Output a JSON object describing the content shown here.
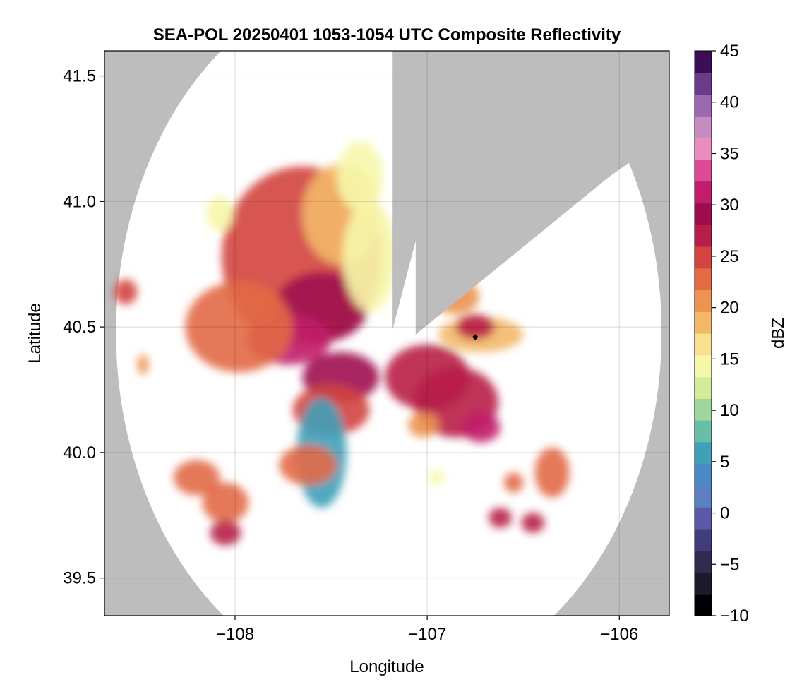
{
  "chart_data": {
    "type": "heatmap",
    "title": "SEA-POL 20250401 1053-1054 UTC Composite Reflectivity",
    "xlabel": "Longitude",
    "ylabel": "Latitude",
    "xlim": [
      -108.68,
      -105.74
    ],
    "ylim": [
      39.35,
      41.6
    ],
    "xticks": [
      -108,
      -107,
      -106
    ],
    "xtick_labels": [
      "−108",
      "−107",
      "−106"
    ],
    "yticks": [
      39.5,
      40.0,
      40.5,
      41.0,
      41.5
    ],
    "ytick_labels": [
      "39.5",
      "40.0",
      "40.5",
      "41.0",
      "41.5"
    ],
    "grid": true,
    "background_color": "#bdbdbd",
    "radar": {
      "center": [
        -107.2,
        40.48
      ],
      "range_deg": 1.42,
      "blocked_sectors": [
        {
          "lon": [
            -107.18,
            -106.83
          ],
          "lat": [
            40.49,
            41.52
          ]
        },
        {
          "lon": [
            -107.06,
            -106.05
          ],
          "lat": [
            40.47,
            41.1
          ]
        }
      ]
    },
    "marker": {
      "lon": -106.75,
      "lat": 40.46,
      "color": "#000000"
    },
    "colorbar": {
      "label": "dBZ",
      "min": -10,
      "max": 45,
      "ticks": [
        -10,
        -5,
        0,
        5,
        10,
        15,
        20,
        25,
        30,
        35,
        40,
        45
      ],
      "tick_labels": [
        "−10",
        "−5",
        "0",
        "5",
        "10",
        "15",
        "20",
        "25",
        "30",
        "35",
        "40",
        "45"
      ],
      "colors": [
        "#000004",
        "#1b1b2a",
        "#2f2c4f",
        "#433c7a",
        "#5a5aa8",
        "#5b7fbf",
        "#4a8ac4",
        "#3fa0b8",
        "#66bfa6",
        "#9fd69d",
        "#d4ec9a",
        "#f6f7a8",
        "#f9e08f",
        "#f3b86a",
        "#ec9351",
        "#e26a45",
        "#d3433f",
        "#b81d47",
        "#a00d4f",
        "#c21d6c",
        "#df4a95",
        "#e88dbd",
        "#c48cc0",
        "#9b69b0",
        "#6b3a8b",
        "#3a0f55"
      ]
    },
    "echoes": [
      {
        "lon": -107.65,
        "lat": 40.78,
        "rlon": 0.42,
        "rlat": 0.36,
        "dbz": 25
      },
      {
        "lon": -107.55,
        "lat": 40.58,
        "rlon": 0.24,
        "rlat": 0.14,
        "dbz": 30
      },
      {
        "lon": -107.72,
        "lat": 40.45,
        "rlon": 0.22,
        "rlat": 0.1,
        "dbz": 31
      },
      {
        "lon": -107.98,
        "lat": 40.5,
        "rlon": 0.28,
        "rlat": 0.18,
        "dbz": 23
      },
      {
        "lon": -107.45,
        "lat": 40.95,
        "rlon": 0.2,
        "rlat": 0.2,
        "dbz": 18
      },
      {
        "lon": -107.3,
        "lat": 40.78,
        "rlon": 0.14,
        "rlat": 0.22,
        "dbz": 15
      },
      {
        "lon": -107.35,
        "lat": 41.1,
        "rlon": 0.12,
        "rlat": 0.14,
        "dbz": 15
      },
      {
        "lon": -107.45,
        "lat": 40.3,
        "rlon": 0.2,
        "rlat": 0.1,
        "dbz": 30
      },
      {
        "lon": -107.5,
        "lat": 40.17,
        "rlon": 0.2,
        "rlat": 0.1,
        "dbz": 24
      },
      {
        "lon": -107.55,
        "lat": 40.0,
        "rlon": 0.13,
        "rlat": 0.22,
        "dbz": 5
      },
      {
        "lon": -107.62,
        "lat": 39.95,
        "rlon": 0.15,
        "rlat": 0.08,
        "dbz": 22
      },
      {
        "lon": -107.0,
        "lat": 40.3,
        "rlon": 0.22,
        "rlat": 0.13,
        "dbz": 26
      },
      {
        "lon": -106.85,
        "lat": 40.2,
        "rlon": 0.22,
        "rlat": 0.14,
        "dbz": 28
      },
      {
        "lon": -106.72,
        "lat": 40.1,
        "rlon": 0.1,
        "rlat": 0.06,
        "dbz": 32
      },
      {
        "lon": -107.02,
        "lat": 40.11,
        "rlon": 0.08,
        "rlat": 0.05,
        "dbz": 20
      },
      {
        "lon": -106.72,
        "lat": 40.47,
        "rlon": 0.22,
        "rlat": 0.07,
        "dbz": 19
      },
      {
        "lon": -106.75,
        "lat": 40.5,
        "rlon": 0.1,
        "rlat": 0.05,
        "dbz": 26
      },
      {
        "lon": -106.85,
        "lat": 40.62,
        "rlon": 0.12,
        "rlat": 0.07,
        "dbz": 20
      },
      {
        "lon": -108.57,
        "lat": 40.64,
        "rlon": 0.06,
        "rlat": 0.05,
        "dbz": 24
      },
      {
        "lon": -108.2,
        "lat": 39.9,
        "rlon": 0.12,
        "rlat": 0.07,
        "dbz": 23
      },
      {
        "lon": -108.05,
        "lat": 39.8,
        "rlon": 0.12,
        "rlat": 0.08,
        "dbz": 22
      },
      {
        "lon": -108.05,
        "lat": 39.68,
        "rlon": 0.08,
        "rlat": 0.05,
        "dbz": 27
      },
      {
        "lon": -106.35,
        "lat": 39.92,
        "rlon": 0.09,
        "rlat": 0.1,
        "dbz": 22
      },
      {
        "lon": -106.62,
        "lat": 39.74,
        "rlon": 0.06,
        "rlat": 0.04,
        "dbz": 27
      },
      {
        "lon": -106.45,
        "lat": 39.72,
        "rlon": 0.06,
        "rlat": 0.04,
        "dbz": 26
      },
      {
        "lon": -106.55,
        "lat": 39.88,
        "rlon": 0.05,
        "rlat": 0.04,
        "dbz": 23
      },
      {
        "lon": -108.08,
        "lat": 40.95,
        "rlon": 0.07,
        "rlat": 0.07,
        "dbz": 15
      },
      {
        "lon": -108.48,
        "lat": 40.35,
        "rlon": 0.03,
        "rlat": 0.04,
        "dbz": 20
      },
      {
        "lon": -106.95,
        "lat": 39.9,
        "rlon": 0.04,
        "rlat": 0.03,
        "dbz": 15
      }
    ]
  }
}
